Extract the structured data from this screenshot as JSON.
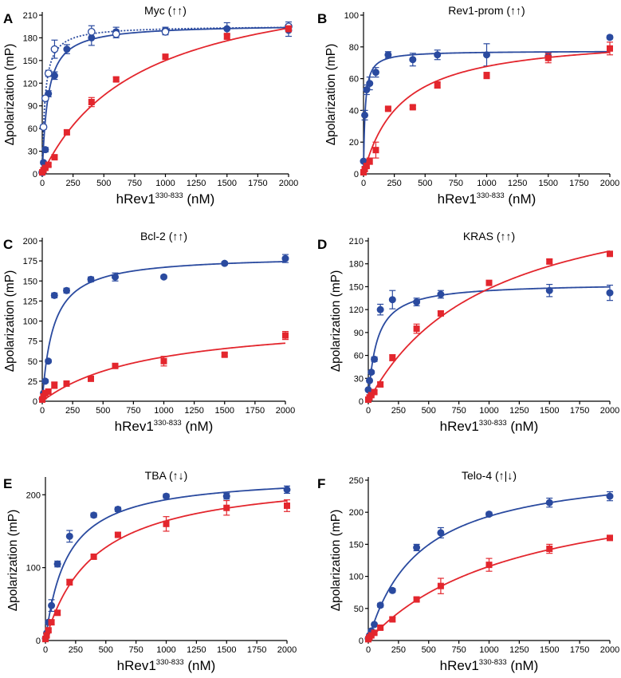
{
  "colors": {
    "blue": "#2a4a9f",
    "red": "#e3262d",
    "axis": "#000000"
  },
  "chart_data": [
    {
      "panel": "A",
      "type": "scatter",
      "title": "Myc (↑↑)",
      "ylabel": "Δpolarization (mP)",
      "xlabel_main": "hRev1",
      "xlabel_sup": "330-833",
      "xlabel_unit": " (nM)",
      "xlim": [
        0,
        2000
      ],
      "ylim": [
        0,
        210
      ],
      "xticks": [
        0,
        250,
        500,
        750,
        1000,
        1250,
        1500,
        1750,
        2000
      ],
      "yticks": [
        0,
        30,
        60,
        90,
        120,
        150,
        180,
        210
      ],
      "series": [
        {
          "color": "blue",
          "marker": "circle",
          "x": [
            0,
            10,
            25,
            50,
            100,
            200,
            400,
            600,
            1000,
            1500,
            2000
          ],
          "y": [
            2,
            15,
            32,
            106,
            130,
            165,
            180,
            188,
            190,
            192,
            190
          ],
          "err": [
            0,
            2,
            3,
            4,
            5,
            6,
            10,
            6,
            4,
            8,
            8
          ],
          "fit": {
            "Bmax": 198,
            "Kd": 45
          }
        },
        {
          "color": "blue",
          "marker": "open-circle",
          "dashed": true,
          "x": [
            0,
            10,
            25,
            50,
            100,
            400,
            600,
            1000,
            2000
          ],
          "y": [
            2,
            62,
            100,
            133,
            165,
            188,
            185,
            188,
            195
          ],
          "err": [
            0,
            3,
            3,
            4,
            12,
            8,
            5,
            4,
            6
          ],
          "fit": {
            "Bmax": 196,
            "Kd": 23
          }
        },
        {
          "color": "red",
          "marker": "square",
          "x": [
            0,
            10,
            25,
            50,
            100,
            200,
            400,
            600,
            1000,
            1500,
            2000
          ],
          "y": [
            2,
            5,
            8,
            12,
            22,
            55,
            95,
            125,
            155,
            182,
            192
          ],
          "err": [
            0,
            1,
            1,
            2,
            2,
            3,
            6,
            3,
            3,
            4,
            4
          ],
          "fit": {
            "Bmax": 270,
            "Kd": 800
          }
        }
      ]
    },
    {
      "panel": "B",
      "type": "scatter",
      "title": "Rev1-prom (↑↑)",
      "ylabel": "Δpolarization (mP)",
      "xlabel_main": "hRev1",
      "xlabel_sup": "330-833",
      "xlabel_unit": " (nM)",
      "xlim": [
        0,
        2000
      ],
      "ylim": [
        0,
        100
      ],
      "xticks": [
        0,
        250,
        500,
        750,
        1000,
        1250,
        1500,
        1750,
        2000
      ],
      "yticks": [
        0,
        20,
        40,
        60,
        80,
        100
      ],
      "series": [
        {
          "color": "blue",
          "marker": "circle",
          "x": [
            0,
            10,
            25,
            50,
            100,
            200,
            400,
            600,
            1000,
            1500,
            2000
          ],
          "y": [
            8,
            37,
            53,
            57,
            64,
            75,
            72,
            75,
            75,
            74,
            86
          ],
          "err": [
            0,
            3,
            3,
            4,
            3,
            2,
            4,
            3,
            7,
            2,
            1
          ],
          "fit": {
            "Bmax": 77.5,
            "Kd": 13
          }
        },
        {
          "color": "red",
          "marker": "square",
          "x": [
            0,
            10,
            25,
            50,
            100,
            200,
            400,
            600,
            1000,
            1500,
            2000
          ],
          "y": [
            1,
            3,
            5,
            8,
            15,
            41,
            42,
            56,
            62,
            73,
            79
          ],
          "err": [
            0,
            1,
            1,
            2,
            5,
            1,
            1,
            2,
            2,
            3,
            4
          ],
          "fit": {
            "Bmax": 88,
            "Kd": 300
          }
        }
      ]
    },
    {
      "panel": "C",
      "type": "scatter",
      "title": "Bcl-2 (↑↑)",
      "ylabel": "Δpolarization (mP)",
      "xlabel_main": "hRev1",
      "xlabel_sup": "330-833",
      "xlabel_unit": " (nM)",
      "xlim": [
        0,
        2000
      ],
      "ylim": [
        0,
        200
      ],
      "xticks": [
        0,
        250,
        500,
        750,
        1000,
        1250,
        1500,
        1750,
        2000
      ],
      "yticks": [
        0,
        25,
        50,
        75,
        100,
        125,
        150,
        175,
        200
      ],
      "series": [
        {
          "color": "blue",
          "marker": "circle",
          "x": [
            0,
            10,
            25,
            50,
            100,
            200,
            400,
            600,
            1000,
            1500,
            2000
          ],
          "y": [
            3,
            10,
            25,
            50,
            132,
            138,
            152,
            155,
            155,
            172,
            178
          ],
          "err": [
            0,
            1,
            2,
            2,
            3,
            3,
            3,
            5,
            2,
            2,
            5
          ],
          "fit": {
            "Bmax": 182,
            "Kd": 90
          }
        },
        {
          "color": "red",
          "marker": "square",
          "x": [
            0,
            10,
            25,
            50,
            100,
            200,
            400,
            600,
            1000,
            1500,
            2000
          ],
          "y": [
            2,
            6,
            10,
            12,
            20,
            22,
            28,
            44,
            50,
            58,
            82
          ],
          "err": [
            0,
            1,
            1,
            2,
            4,
            3,
            2,
            2,
            6,
            2,
            5
          ],
          "fit": {
            "Bmax": 105,
            "Kd": 900
          }
        }
      ]
    },
    {
      "panel": "D",
      "type": "scatter",
      "title": "KRAS (↑↑)",
      "ylabel": "Δpolarization (mP)",
      "xlabel_main": "hRev1",
      "xlabel_sup": "330-833",
      "xlabel_unit": " (nM)",
      "xlim": [
        0,
        2000
      ],
      "ylim": [
        0,
        210
      ],
      "xticks": [
        0,
        250,
        500,
        750,
        1000,
        1250,
        1500,
        1750,
        2000
      ],
      "yticks": [
        0,
        30,
        60,
        90,
        120,
        150,
        180,
        210
      ],
      "series": [
        {
          "color": "blue",
          "marker": "circle",
          "x": [
            0,
            10,
            25,
            50,
            100,
            200,
            400,
            600,
            1500,
            2000
          ],
          "y": [
            15,
            27,
            38,
            55,
            120,
            133,
            130,
            140,
            145,
            142
          ],
          "err": [
            0,
            2,
            2,
            3,
            7,
            12,
            5,
            5,
            8,
            10
          ],
          "fit": {
            "Bmax": 155,
            "Kd": 70
          }
        },
        {
          "color": "red",
          "marker": "square",
          "x": [
            0,
            10,
            25,
            50,
            100,
            200,
            400,
            600,
            1000,
            1500,
            2000
          ],
          "y": [
            2,
            5,
            8,
            12,
            22,
            57,
            95,
            115,
            155,
            183,
            193
          ],
          "err": [
            0,
            1,
            1,
            2,
            3,
            4,
            6,
            3,
            3,
            3,
            3
          ],
          "fit": {
            "Bmax": 295,
            "Kd": 1000
          }
        }
      ]
    },
    {
      "panel": "E",
      "type": "scatter",
      "title": "TBA (↑↓)",
      "ylabel": "Δpolarization (mP)",
      "xlabel_main": "hRev1",
      "xlabel_sup": "330-833",
      "xlabel_unit": " (nM)",
      "xlim": [
        0,
        2000
      ],
      "ylim": [
        0,
        220
      ],
      "xticks": [
        0,
        250,
        500,
        750,
        1000,
        1250,
        1500,
        1750,
        2000
      ],
      "yticks": [
        0,
        100,
        200
      ],
      "series": [
        {
          "color": "blue",
          "marker": "circle",
          "x": [
            0,
            10,
            25,
            50,
            100,
            200,
            400,
            600,
            1000,
            1500,
            2000
          ],
          "y": [
            3,
            10,
            25,
            48,
            105,
            143,
            172,
            180,
            198,
            198,
            207
          ],
          "err": [
            0,
            2,
            3,
            8,
            4,
            8,
            3,
            3,
            3,
            4,
            5
          ],
          "fit": {
            "Bmax": 228,
            "Kd": 180
          }
        },
        {
          "color": "red",
          "marker": "square",
          "x": [
            0,
            10,
            25,
            50,
            100,
            200,
            400,
            600,
            1000,
            1500,
            2000
          ],
          "y": [
            2,
            7,
            14,
            25,
            38,
            80,
            115,
            145,
            160,
            182,
            185
          ],
          "err": [
            0,
            1,
            2,
            3,
            3,
            4,
            3,
            3,
            10,
            10,
            8
          ],
          "fit": {
            "Bmax": 230,
            "Kd": 400
          }
        }
      ]
    },
    {
      "panel": "F",
      "type": "scatter",
      "title": "Telo-4 (↑|↓)",
      "ylabel": "Δpolarization (mP)",
      "xlabel_main": "hRev1",
      "xlabel_sup": "330-833",
      "xlabel_unit": " (nM)",
      "xlim": [
        0,
        2000
      ],
      "ylim": [
        0,
        250
      ],
      "xticks": [
        0,
        250,
        500,
        750,
        1000,
        1250,
        1500,
        1750,
        2000
      ],
      "yticks": [
        0,
        50,
        100,
        150,
        200,
        250
      ],
      "series": [
        {
          "color": "blue",
          "marker": "circle",
          "x": [
            0,
            10,
            25,
            50,
            100,
            200,
            400,
            600,
            1000,
            1500,
            2000
          ],
          "y": [
            3,
            8,
            15,
            25,
            55,
            78,
            145,
            168,
            197,
            215,
            225
          ],
          "err": [
            0,
            1,
            2,
            2,
            3,
            3,
            5,
            8,
            3,
            7,
            7
          ],
          "fit": {
            "Bmax": 275,
            "Kd": 420
          }
        },
        {
          "color": "red",
          "marker": "square",
          "x": [
            0,
            10,
            25,
            50,
            100,
            200,
            400,
            600,
            1000,
            1500,
            2000
          ],
          "y": [
            2,
            5,
            8,
            12,
            20,
            33,
            64,
            85,
            118,
            143,
            160
          ],
          "err": [
            0,
            1,
            1,
            2,
            3,
            3,
            3,
            12,
            10,
            7,
            4
          ],
          "fit": {
            "Bmax": 260,
            "Kd": 1250
          }
        }
      ]
    }
  ]
}
